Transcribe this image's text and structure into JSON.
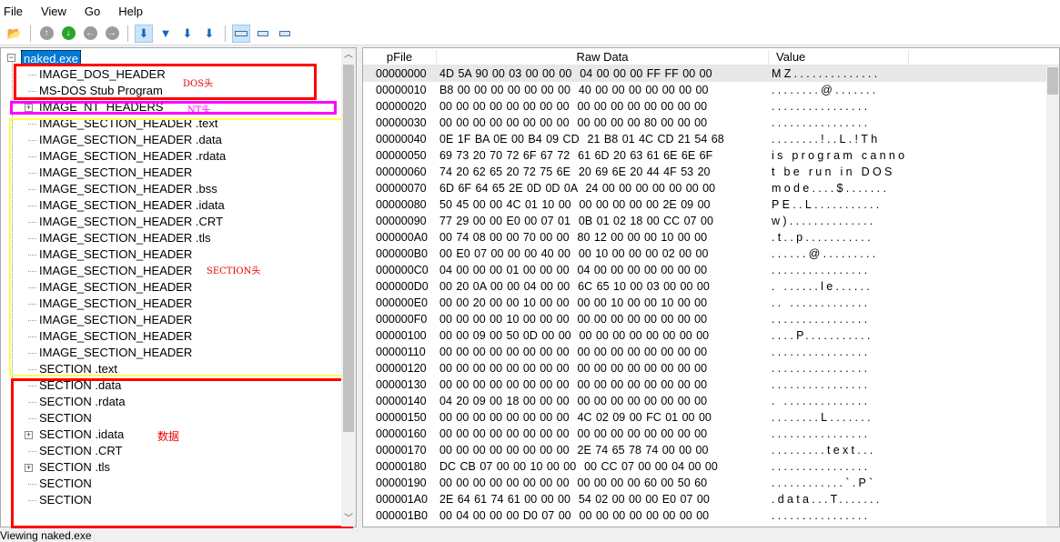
{
  "menu": [
    "File",
    "View",
    "Go",
    "Help"
  ],
  "toolbar": {
    "icons": [
      "open-file-icon",
      "back-up-icon",
      "down-green-icon",
      "prev-icon",
      "next-icon",
      "save-icon-1",
      "save-icon-2",
      "save-icon-3",
      "save-icon-4",
      "view-wide-icon",
      "view-medium-icon",
      "view-narrow-icon"
    ]
  },
  "tree": {
    "root": "naked.exe",
    "items": [
      {
        "label": "IMAGE_DOS_HEADER",
        "expand": false
      },
      {
        "label": "MS-DOS Stub Program",
        "expand": false
      },
      {
        "label": "IMAGE_NT_HEADERS",
        "expand": true
      },
      {
        "label": "IMAGE_SECTION_HEADER .text",
        "expand": false
      },
      {
        "label": "IMAGE_SECTION_HEADER .data",
        "expand": false
      },
      {
        "label": "IMAGE_SECTION_HEADER .rdata",
        "expand": false
      },
      {
        "label": "IMAGE_SECTION_HEADER",
        "expand": false
      },
      {
        "label": "IMAGE_SECTION_HEADER .bss",
        "expand": false
      },
      {
        "label": "IMAGE_SECTION_HEADER .idata",
        "expand": false
      },
      {
        "label": "IMAGE_SECTION_HEADER .CRT",
        "expand": false
      },
      {
        "label": "IMAGE_SECTION_HEADER .tls",
        "expand": false
      },
      {
        "label": "IMAGE_SECTION_HEADER",
        "expand": false
      },
      {
        "label": "IMAGE_SECTION_HEADER",
        "expand": false
      },
      {
        "label": "IMAGE_SECTION_HEADER",
        "expand": false
      },
      {
        "label": "IMAGE_SECTION_HEADER",
        "expand": false
      },
      {
        "label": "IMAGE_SECTION_HEADER",
        "expand": false
      },
      {
        "label": "IMAGE_SECTION_HEADER",
        "expand": false
      },
      {
        "label": "IMAGE_SECTION_HEADER",
        "expand": false
      },
      {
        "label": "SECTION .text",
        "expand": false
      },
      {
        "label": "SECTION .data",
        "expand": false
      },
      {
        "label": "SECTION .rdata",
        "expand": false
      },
      {
        "label": "SECTION",
        "expand": false
      },
      {
        "label": "SECTION .idata",
        "expand": true
      },
      {
        "label": "SECTION .CRT",
        "expand": false
      },
      {
        "label": "SECTION .tls",
        "expand": true
      },
      {
        "label": "SECTION",
        "expand": false
      },
      {
        "label": "SECTION",
        "expand": false
      }
    ]
  },
  "annotations": {
    "dos": "DOS头",
    "nt": "NT头",
    "section": "SECTION头",
    "data": "数据",
    "colors": {
      "red": "#ff0000",
      "magenta": "#ff00ff",
      "yellow": "#ffff44"
    }
  },
  "columns": {
    "offset": "pFile",
    "raw": "Raw Data",
    "value": "Value"
  },
  "rows": [
    {
      "off": "00000000",
      "hex": "4D 5A 90 00 03 00 00 00  04 00 00 00 FF FF 00 00",
      "val": "MZ.............."
    },
    {
      "off": "00000010",
      "hex": "B8 00 00 00 00 00 00 00  40 00 00 00 00 00 00 00",
      "val": "........@......."
    },
    {
      "off": "00000020",
      "hex": "00 00 00 00 00 00 00 00  00 00 00 00 00 00 00 00",
      "val": "................"
    },
    {
      "off": "00000030",
      "hex": "00 00 00 00 00 00 00 00  00 00 00 00 80 00 00 00",
      "val": "................"
    },
    {
      "off": "00000040",
      "hex": "0E 1F BA 0E 00 B4 09 CD  21 B8 01 4C CD 21 54 68",
      "val": "........!..L.!Th"
    },
    {
      "off": "00000050",
      "hex": "69 73 20 70 72 6F 67 72  61 6D 20 63 61 6E 6E 6F",
      "val": "is program canno"
    },
    {
      "off": "00000060",
      "hex": "74 20 62 65 20 72 75 6E  20 69 6E 20 44 4F 53 20",
      "val": "t be run in DOS "
    },
    {
      "off": "00000070",
      "hex": "6D 6F 64 65 2E 0D 0D 0A  24 00 00 00 00 00 00 00",
      "val": "mode....$......."
    },
    {
      "off": "00000080",
      "hex": "50 45 00 00 4C 01 10 00  00 00 00 00 00 2E 09 00",
      "val": "PE..L..........."
    },
    {
      "off": "00000090",
      "hex": "77 29 00 00 E0 00 07 01  0B 01 02 18 00 CC 07 00",
      "val": "w).............."
    },
    {
      "off": "000000A0",
      "hex": "00 74 08 00 00 70 00 00  80 12 00 00 00 10 00 00",
      "val": ".t..p..........."
    },
    {
      "off": "000000B0",
      "hex": "00 E0 07 00 00 00 40 00  00 10 00 00 00 02 00 00",
      "val": "......@........."
    },
    {
      "off": "000000C0",
      "hex": "04 00 00 00 01 00 00 00  04 00 00 00 00 00 00 00",
      "val": "................"
    },
    {
      "off": "000000D0",
      "hex": "00 20 0A 00 00 04 00 00  6C 65 10 00 03 00 00 00",
      "val": ". ......le......"
    },
    {
      "off": "000000E0",
      "hex": "00 00 20 00 00 10 00 00  00 00 10 00 00 10 00 00",
      "val": ".. ............."
    },
    {
      "off": "000000F0",
      "hex": "00 00 00 00 10 00 00 00  00 00 00 00 00 00 00 00",
      "val": "................"
    },
    {
      "off": "00000100",
      "hex": "00 00 09 00 50 0D 00 00  00 00 00 00 00 00 00 00",
      "val": "....P..........."
    },
    {
      "off": "00000110",
      "hex": "00 00 00 00 00 00 00 00  00 00 00 00 00 00 00 00",
      "val": "................"
    },
    {
      "off": "00000120",
      "hex": "00 00 00 00 00 00 00 00  00 00 00 00 00 00 00 00",
      "val": "................"
    },
    {
      "off": "00000130",
      "hex": "00 00 00 00 00 00 00 00  00 00 00 00 00 00 00 00",
      "val": "................"
    },
    {
      "off": "00000140",
      "hex": "04 20 09 00 18 00 00 00  00 00 00 00 00 00 00 00",
      "val": ". .............."
    },
    {
      "off": "00000150",
      "hex": "00 00 00 00 00 00 00 00  4C 02 09 00 FC 01 00 00",
      "val": "........L......."
    },
    {
      "off": "00000160",
      "hex": "00 00 00 00 00 00 00 00  00 00 00 00 00 00 00 00",
      "val": "................"
    },
    {
      "off": "00000170",
      "hex": "00 00 00 00 00 00 00 00  2E 74 65 78 74 00 00 00",
      "val": ".........text..."
    },
    {
      "off": "00000180",
      "hex": "DC CB 07 00 00 10 00 00  00 CC 07 00 00 04 00 00",
      "val": "................"
    },
    {
      "off": "00000190",
      "hex": "00 00 00 00 00 00 00 00  00 00 00 00 60 00 50 60",
      "val": "............`.P`"
    },
    {
      "off": "000001A0",
      "hex": "2E 64 61 74 61 00 00 00  54 02 00 00 00 E0 07 00",
      "val": ".data...T......."
    },
    {
      "off": "000001B0",
      "hex": "00 04 00 00 00 D0 07 00  00 00 00 00 00 00 00 00",
      "val": "................"
    }
  ],
  "status": "Viewing naked.exe"
}
